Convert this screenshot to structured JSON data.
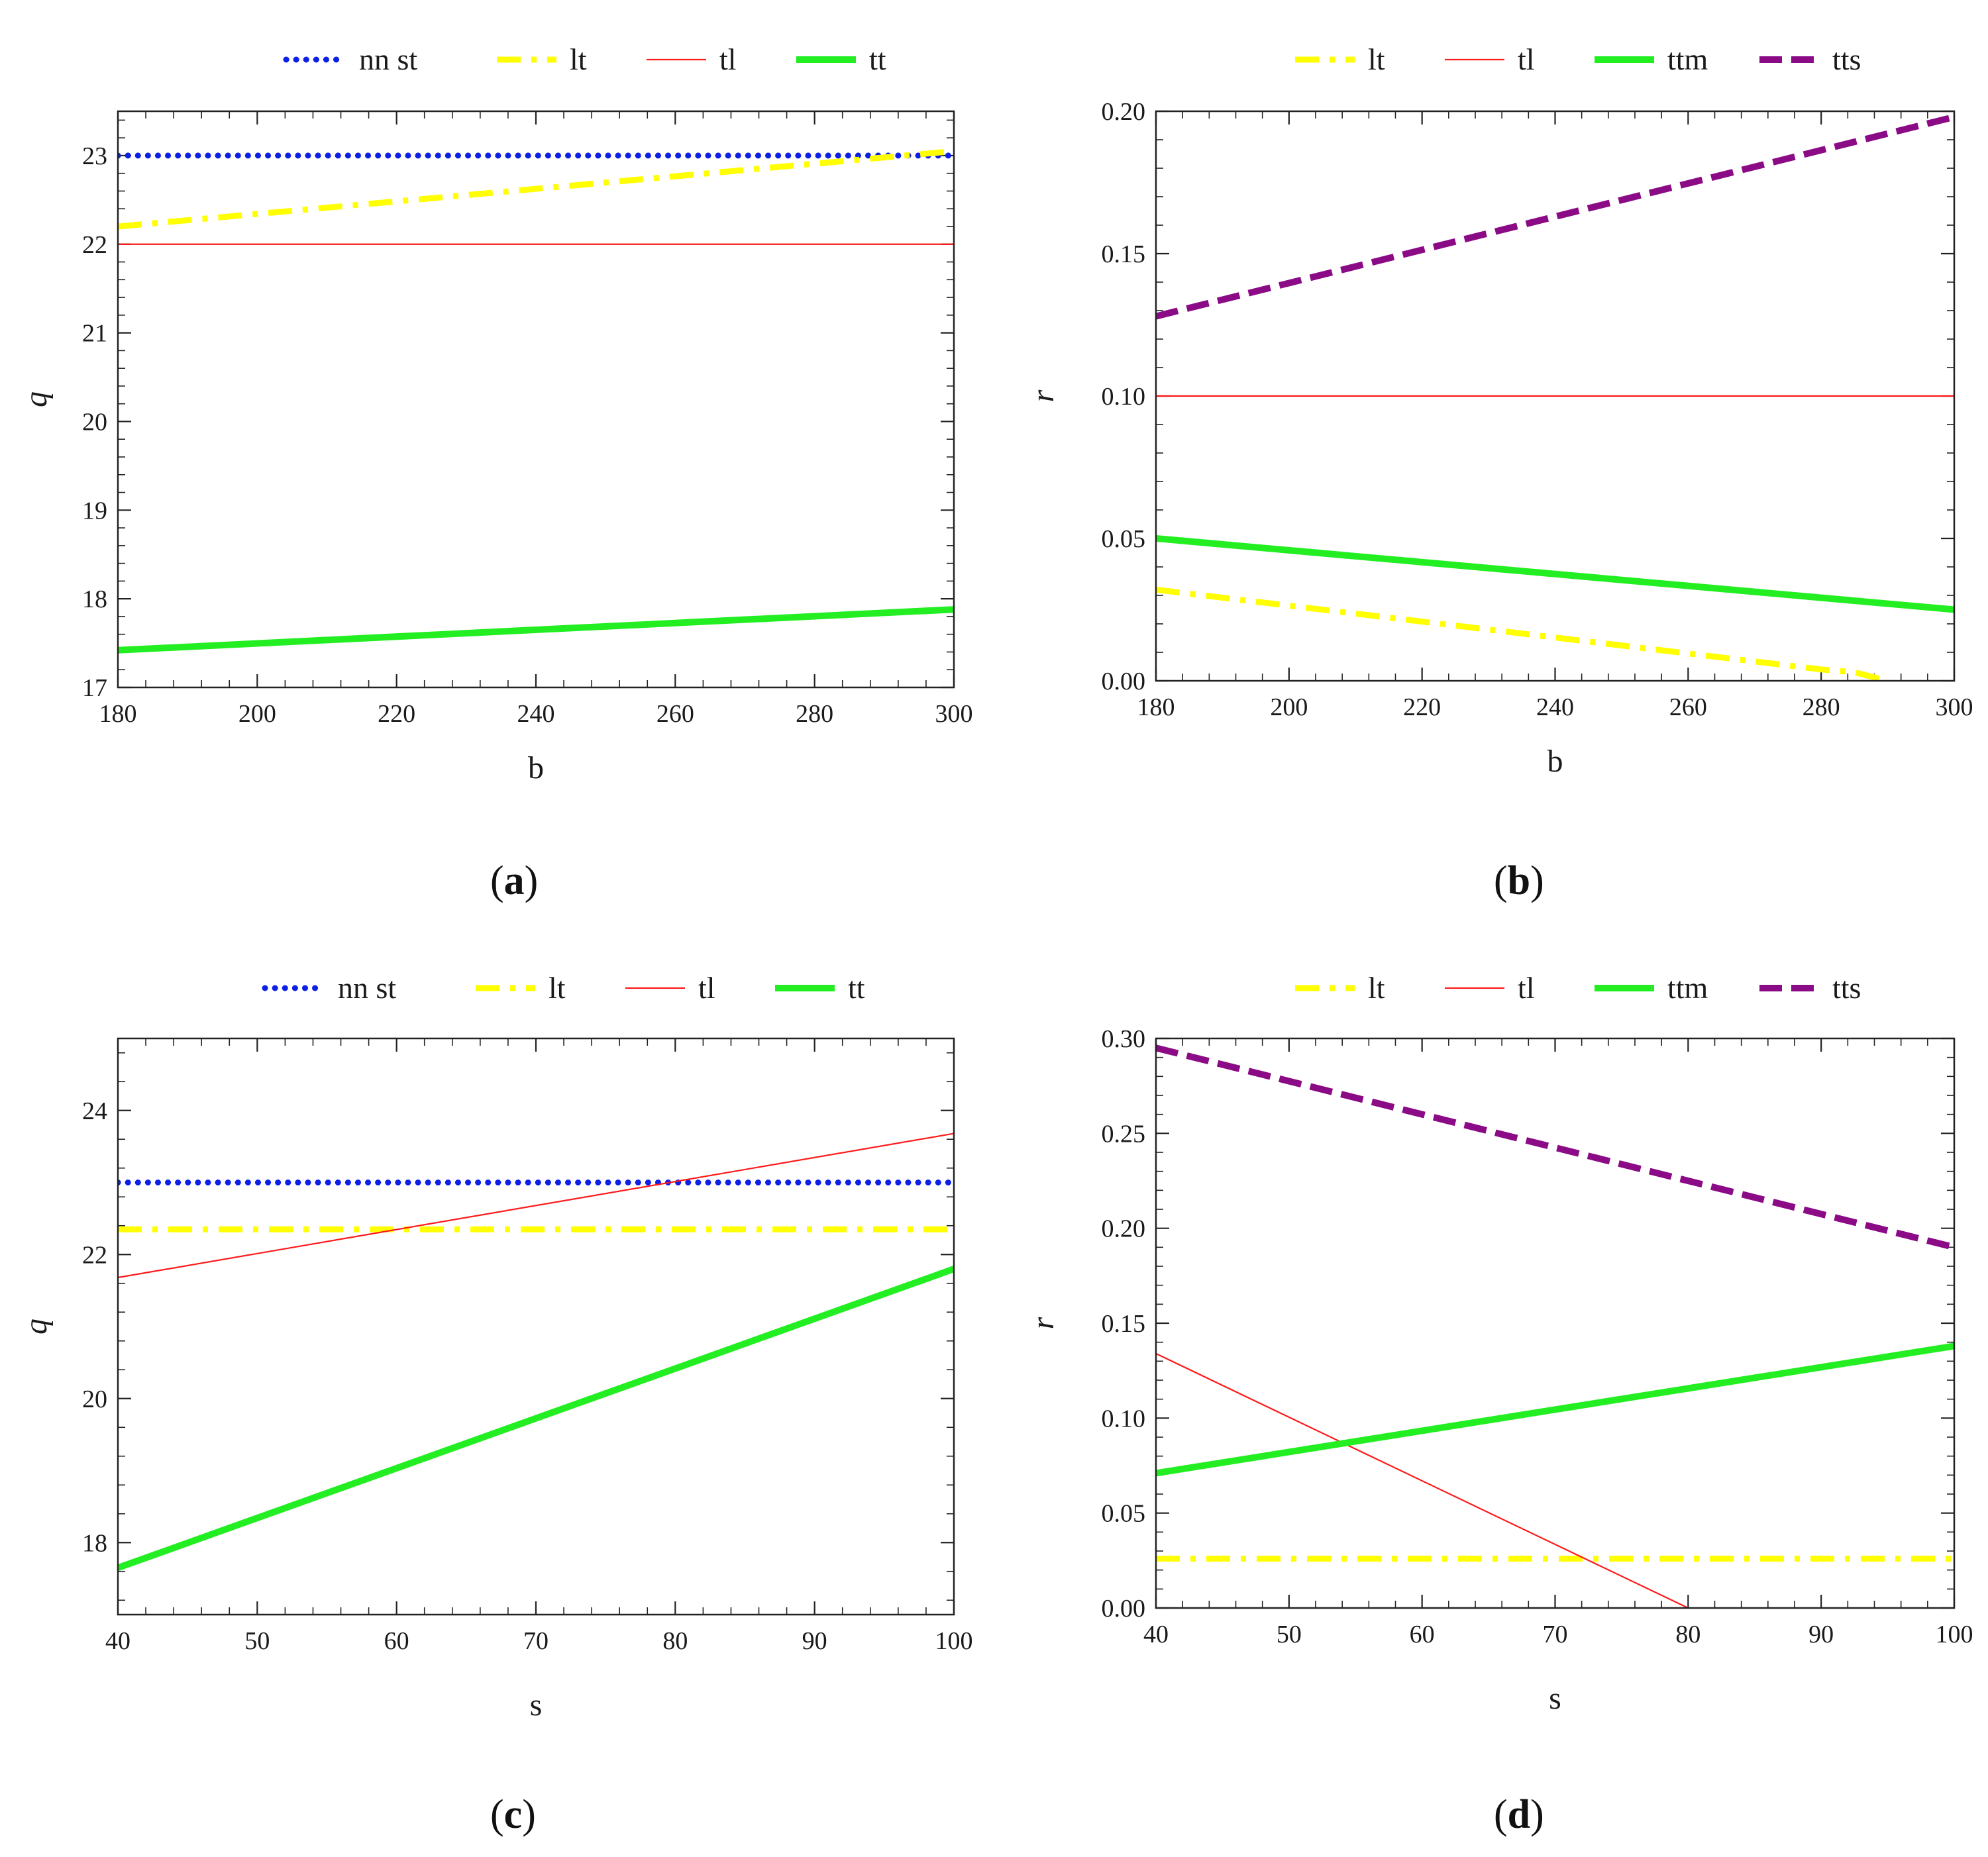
{
  "colors": {
    "blue": "#0b1fe6",
    "yellow": "#ffff00",
    "red": "#ff1a1a",
    "green": "#22ee22",
    "purple": "#8b0a86"
  },
  "chart_data": [
    {
      "panel": "a",
      "type": "line",
      "panel_label_open": "(",
      "panel_label_letter": "a",
      "panel_label_close": ")",
      "xlabel": "b",
      "ylabel": "q",
      "xlim": [
        180,
        300
      ],
      "ylim": [
        17,
        23.5
      ],
      "xticks": [
        180,
        200,
        220,
        240,
        260,
        280,
        300
      ],
      "yticks": [
        17,
        18,
        19,
        20,
        21,
        22,
        23
      ],
      "ytick_labels": [
        "17",
        "18",
        "19",
        "20",
        "21",
        "22",
        "23"
      ],
      "legend": "top",
      "series": [
        {
          "name": "nn  st",
          "color": "blue",
          "style": "dotted",
          "x": [
            180,
            300
          ],
          "y": [
            23,
            23
          ]
        },
        {
          "name": "lt",
          "color": "yellow",
          "style": "dashdot",
          "x": [
            180,
            300
          ],
          "y": [
            22.2,
            23.05
          ]
        },
        {
          "name": "tl",
          "color": "red",
          "style": "thin",
          "x": [
            180,
            300
          ],
          "y": [
            22,
            22
          ]
        },
        {
          "name": "tt",
          "color": "green",
          "style": "thick",
          "x": [
            180,
            300
          ],
          "y": [
            17.42,
            17.88
          ]
        }
      ]
    },
    {
      "panel": "b",
      "type": "line",
      "panel_label_open": "(",
      "panel_label_letter": "b",
      "panel_label_close": ")",
      "xlabel": "b",
      "ylabel": "r",
      "xlim": [
        180,
        300
      ],
      "ylim": [
        0,
        0.2
      ],
      "xticks": [
        180,
        200,
        220,
        240,
        260,
        280,
        300
      ],
      "yticks": [
        0,
        0.05,
        0.1,
        0.15,
        0.2
      ],
      "ytick_labels": [
        "0.00",
        "0.05",
        "0.10",
        "0.15",
        "0.20"
      ],
      "legend": "top",
      "series": [
        {
          "name": "lt",
          "color": "yellow",
          "style": "dashdot",
          "x": [
            180,
            280,
            285,
            290
          ],
          "y": [
            0.032,
            0.004,
            0.003,
            0.0
          ]
        },
        {
          "name": "tl",
          "color": "red",
          "style": "thin",
          "x": [
            180,
            300
          ],
          "y": [
            0.1,
            0.1
          ]
        },
        {
          "name": "ttm",
          "color": "green",
          "style": "thick",
          "x": [
            180,
            300
          ],
          "y": [
            0.05,
            0.025
          ]
        },
        {
          "name": "tts",
          "color": "purple",
          "style": "dashed",
          "x": [
            180,
            300
          ],
          "y": [
            0.128,
            0.198
          ]
        }
      ]
    },
    {
      "panel": "c",
      "type": "line",
      "panel_label_open": "(",
      "panel_label_letter": "c",
      "panel_label_close": ")",
      "xlabel": "s",
      "ylabel": "q",
      "xlim": [
        40,
        100
      ],
      "ylim": [
        17,
        25
      ],
      "xticks": [
        40,
        50,
        60,
        70,
        80,
        90,
        100
      ],
      "yticks": [
        18,
        20,
        22,
        24
      ],
      "ytick_labels": [
        "18",
        "20",
        "22",
        "24"
      ],
      "legend": "top",
      "series": [
        {
          "name": "nn  st",
          "color": "blue",
          "style": "dotted",
          "x": [
            40,
            100
          ],
          "y": [
            23,
            23
          ]
        },
        {
          "name": "lt",
          "color": "yellow",
          "style": "dashdot",
          "x": [
            40,
            100
          ],
          "y": [
            22.35,
            22.35
          ]
        },
        {
          "name": "tl",
          "color": "red",
          "style": "thin",
          "x": [
            40,
            100
          ],
          "y": [
            21.68,
            23.68
          ]
        },
        {
          "name": "tt",
          "color": "green",
          "style": "thick",
          "x": [
            40,
            100
          ],
          "y": [
            17.65,
            21.8
          ]
        }
      ]
    },
    {
      "panel": "d",
      "type": "line",
      "panel_label_open": "(",
      "panel_label_letter": "d",
      "panel_label_close": ")",
      "xlabel": "s",
      "ylabel": "r",
      "xlim": [
        40,
        100
      ],
      "ylim": [
        0,
        0.3
      ],
      "xticks": [
        40,
        50,
        60,
        70,
        80,
        90,
        100
      ],
      "yticks": [
        0,
        0.05,
        0.1,
        0.15,
        0.2,
        0.25,
        0.3
      ],
      "ytick_labels": [
        "0.00",
        "0.05",
        "0.10",
        "0.15",
        "0.20",
        "0.25",
        "0.30"
      ],
      "legend": "top",
      "series": [
        {
          "name": "lt",
          "color": "yellow",
          "style": "dashdot",
          "x": [
            40,
            100
          ],
          "y": [
            0.026,
            0.026
          ]
        },
        {
          "name": "tl",
          "color": "red",
          "style": "thin",
          "x": [
            40,
            80
          ],
          "y": [
            0.134,
            0.0
          ]
        },
        {
          "name": "ttm",
          "color": "green",
          "style": "thick",
          "x": [
            40,
            100
          ],
          "y": [
            0.071,
            0.138
          ]
        },
        {
          "name": "tts",
          "color": "purple",
          "style": "dashed",
          "x": [
            40,
            100
          ],
          "y": [
            0.295,
            0.19
          ]
        }
      ]
    }
  ]
}
